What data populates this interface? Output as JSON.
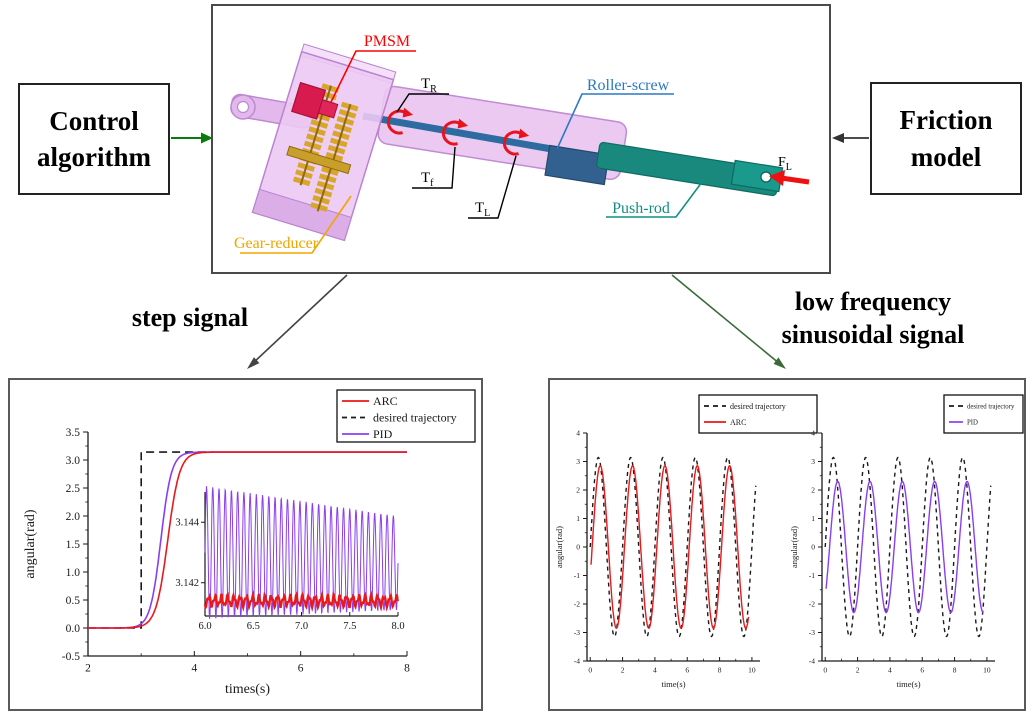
{
  "figure": {
    "control_box": {
      "line1": "Control",
      "line2": "algorithm"
    },
    "friction_box": {
      "line1": "Friction",
      "line2": "model"
    },
    "branch_labels": {
      "step": "step signal",
      "low_freq_line1": "low frequency",
      "low_freq_line2": "sinusoidal signal"
    }
  },
  "diagram": {
    "labels": {
      "pmsm": "PMSM",
      "gear_reducer": "Gear-reducer",
      "roller_screw": "Roller-screw",
      "push_rod": "Push-rod",
      "t_r": {
        "main": "T",
        "sub": "R"
      },
      "t_f": {
        "main": "T",
        "sub": "f"
      },
      "t_l": {
        "main": "T",
        "sub": "L"
      },
      "f_l": {
        "main": "F",
        "sub": "L"
      }
    },
    "colors": {
      "pmsm_label": "#ff0000",
      "gear_reducer_label": "#f0a500",
      "roller_screw_label": "#2b78c2",
      "push_rod_label": "#0f9080",
      "torque_label": "#000000",
      "housing": "#e6bcee",
      "gearbox": "#ecc9f3",
      "gears": "#d7a62a",
      "motor": "#d81b4f",
      "screw_shaft": "#2d6ba0",
      "screw_nut": "#33618f",
      "push_rod_body": "#19897d",
      "torque_arrow": "#e8131d",
      "force_arrow": "#ee1111"
    }
  },
  "connectors": {
    "control_to_diagram_color": "#0a7a0a",
    "friction_to_diagram_color": "#333333",
    "diagram_to_step_color": "#444444",
    "diagram_to_sine_color": "#3a6b3a"
  },
  "chart_data": [
    {
      "id": "step",
      "type": "line",
      "xlabel": "times(s)",
      "ylabel": "angular(rad)",
      "xlim": [
        2,
        8
      ],
      "ylim": [
        -0.5,
        3.5
      ],
      "xticks": [
        {
          "v": 2,
          "t": "2"
        },
        {
          "v": 4,
          "t": "4"
        },
        {
          "v": 6,
          "t": "6"
        },
        {
          "v": 8,
          "t": "8"
        }
      ],
      "yticks": [
        {
          "v": -0.5,
          "t": "-0.5"
        },
        {
          "v": 0,
          "t": "0.0"
        },
        {
          "v": 0.5,
          "t": "0.5"
        },
        {
          "v": 1,
          "t": "1.0"
        },
        {
          "v": 1.5,
          "t": "1.5"
        },
        {
          "v": 2,
          "t": "2.0"
        },
        {
          "v": 2.5,
          "t": "2.5"
        },
        {
          "v": 3,
          "t": "3.0"
        },
        {
          "v": 3.5,
          "t": "3.5"
        }
      ],
      "legend": [
        {
          "name": "ARC",
          "color": "#e8191c",
          "style": "solid"
        },
        {
          "name": "desired trajectory",
          "color": "#1a1a1a",
          "style": "dashed"
        },
        {
          "name": "PID",
          "color": "#8a3ef2",
          "style": "solid"
        }
      ],
      "series": [
        {
          "name": "desired trajectory",
          "kind": "step",
          "color": "#1a1a1a",
          "style": "dashed",
          "x_start": 2,
          "x_end": 4.35,
          "step_time": 3,
          "level0": 0,
          "level1": 3.1416
        },
        {
          "name": "PID",
          "kind": "sigmoid",
          "color": "#8a3ef2",
          "style": "solid",
          "x_start": 2,
          "x_end": 8,
          "amplitude": 3.1416,
          "t0": 3.37,
          "k": 10
        },
        {
          "name": "ARC",
          "kind": "sigmoid",
          "color": "#e8191c",
          "style": "solid",
          "x_start": 2,
          "x_end": 8,
          "amplitude": 3.1416,
          "t0": 3.5,
          "k": 9
        }
      ],
      "inset": {
        "xlim": [
          6,
          8
        ],
        "ylim": [
          3.1409,
          3.145
        ],
        "xticks": [
          {
            "v": 6,
            "t": "6.0"
          },
          {
            "v": 6.5,
            "t": "6.5"
          },
          {
            "v": 7,
            "t": "7.0"
          },
          {
            "v": 7.5,
            "t": "7.5"
          },
          {
            "v": 8,
            "t": "8.0"
          }
        ],
        "yticks": [
          {
            "v": 3.142,
            "t": "3.142"
          },
          {
            "v": 3.144,
            "t": "3.144"
          }
        ],
        "pid_oscillation": {
          "color": "#8a3ef2",
          "freq_hz": 15.5,
          "upper_start": 3.1452,
          "upper_end": 3.1442,
          "lower_start": 3.1408,
          "lower_end": 3.1411
        },
        "arc_band": {
          "color": "#e8191c",
          "center": 3.1414,
          "amplitude": 0.00015
        }
      }
    },
    {
      "id": "sine_arc",
      "type": "line",
      "xlabel": "time(s)",
      "ylabel": "angular(rad)",
      "xlim": [
        -0.2,
        10.5
      ],
      "ylim": [
        -4,
        4
      ],
      "xticks": [
        {
          "v": 0,
          "t": "0"
        },
        {
          "v": 2,
          "t": "2"
        },
        {
          "v": 4,
          "t": "4"
        },
        {
          "v": 6,
          "t": "6"
        },
        {
          "v": 8,
          "t": "8"
        },
        {
          "v": 10,
          "t": "10"
        }
      ],
      "yticks": [
        {
          "v": -4,
          "t": "-4"
        },
        {
          "v": -3,
          "t": "-3"
        },
        {
          "v": -2,
          "t": "-2"
        },
        {
          "v": -1,
          "t": "-1"
        },
        {
          "v": 0,
          "t": "0"
        },
        {
          "v": 1,
          "t": "1"
        },
        {
          "v": 2,
          "t": "2"
        },
        {
          "v": 3,
          "t": "3"
        },
        {
          "v": 4,
          "t": "4"
        }
      ],
      "legend": [
        {
          "name": "desired trajectory",
          "color": "#1a1a1a",
          "style": "dashed"
        },
        {
          "name": "ARC",
          "color": "#e8191c",
          "style": "solid"
        }
      ],
      "series": [
        {
          "name": "desired trajectory",
          "kind": "sine",
          "color": "#1a1a1a",
          "style": "dashed",
          "x_start": 0,
          "x_end": 10.25,
          "amplitude": 3.14,
          "period": 2,
          "phase": 0
        },
        {
          "name": "ARC",
          "kind": "sine",
          "color": "#e8191c",
          "style": "solid",
          "x_start": 0.05,
          "x_end": 9.8,
          "amplitude": 2.85,
          "period": 2,
          "phase": 0.12
        }
      ]
    },
    {
      "id": "sine_pid",
      "type": "line",
      "xlabel": "time(s)",
      "ylabel": "angular(rad)",
      "xlim": [
        -0.2,
        10.5
      ],
      "ylim": [
        -4,
        4
      ],
      "xticks": [
        {
          "v": 0,
          "t": "0"
        },
        {
          "v": 2,
          "t": "2"
        },
        {
          "v": 4,
          "t": "4"
        },
        {
          "v": 6,
          "t": "6"
        },
        {
          "v": 8,
          "t": "8"
        },
        {
          "v": 10,
          "t": "10"
        }
      ],
      "yticks": [
        {
          "v": -4,
          "t": "-4"
        },
        {
          "v": -3,
          "t": "-3"
        },
        {
          "v": -2,
          "t": "-2"
        },
        {
          "v": -1,
          "t": "-1"
        },
        {
          "v": 0,
          "t": "0"
        },
        {
          "v": 1,
          "t": "1"
        },
        {
          "v": 2,
          "t": "2"
        },
        {
          "v": 3,
          "t": "3"
        },
        {
          "v": 4,
          "t": "4"
        }
      ],
      "legend": [
        {
          "name": "desired trajectory",
          "color": "#1a1a1a",
          "style": "dashed"
        },
        {
          "name": "PID",
          "color": "#8a3ef2",
          "style": "solid"
        }
      ],
      "series": [
        {
          "name": "desired trajectory",
          "kind": "sine",
          "color": "#1a1a1a",
          "style": "dashed",
          "x_start": 0,
          "x_end": 10.25,
          "amplitude": 3.14,
          "period": 2,
          "phase": 0
        },
        {
          "name": "PID",
          "kind": "sine",
          "color": "#8a3ef2",
          "style": "solid",
          "x_start": 0.05,
          "x_end": 9.8,
          "amplitude": 2.3,
          "period": 2,
          "phase": 0.27
        }
      ]
    }
  ]
}
